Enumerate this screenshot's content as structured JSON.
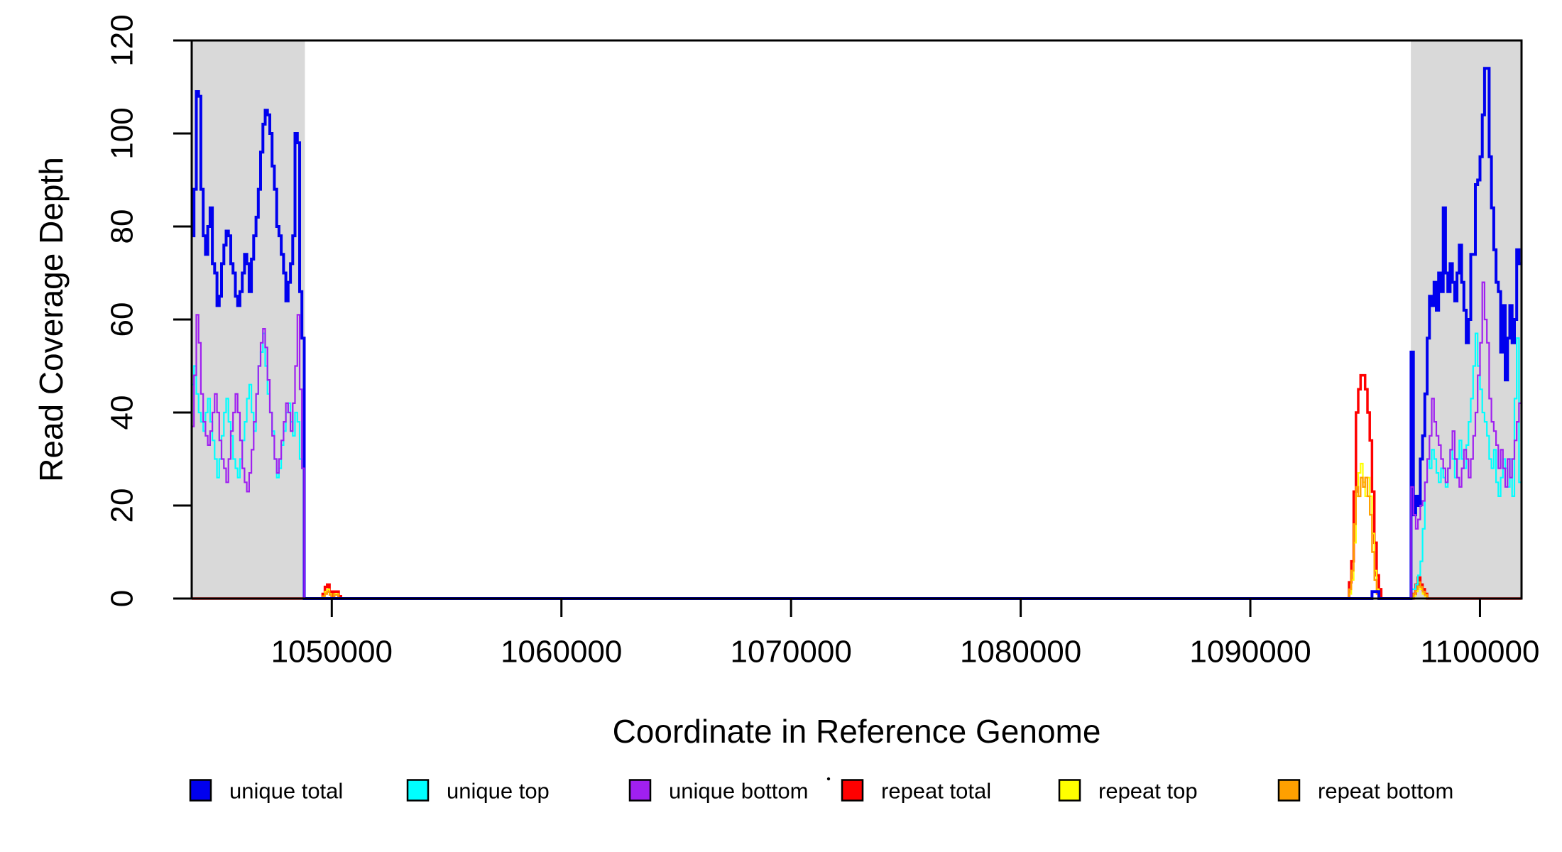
{
  "figure": {
    "background": "#FFFFFF"
  },
  "chart_data": {
    "type": "line",
    "subtype": "step-coverage-plot",
    "title": "",
    "xlabel": "Coordinate in Reference Genome",
    "ylabel": "Read Coverage Depth",
    "xlim": [
      1043900,
      1101810
    ],
    "ylim": [
      0,
      120
    ],
    "bin_size": 100,
    "grid": false,
    "axis_color": "#000000",
    "shade_color": "#D9D9D9",
    "shaded_regions": [
      {
        "name": "left-unique-block",
        "x0": 1043900,
        "x1": 1048830
      },
      {
        "name": "right-unique-block",
        "x0": 1096990,
        "x1": 1101810
      }
    ],
    "xticks": [
      {
        "value": 1050000,
        "label": "1050000"
      },
      {
        "value": 1060000,
        "label": "1060000"
      },
      {
        "value": 1070000,
        "label": "1070000"
      },
      {
        "value": 1080000,
        "label": "1080000"
      },
      {
        "value": 1090000,
        "label": "1090000"
      },
      {
        "value": 1100000,
        "label": "1100000"
      }
    ],
    "yticks": [
      {
        "value": 0,
        "label": "0"
      },
      {
        "value": 20,
        "label": "20"
      },
      {
        "value": 40,
        "label": "40"
      },
      {
        "value": 60,
        "label": "60"
      },
      {
        "value": 80,
        "label": "80"
      },
      {
        "value": 100,
        "label": "100"
      },
      {
        "value": 120,
        "label": "120"
      }
    ],
    "legend_position": "bottom",
    "draw_order": [
      "repeat total",
      "repeat top",
      "repeat bottom",
      "unique top",
      "unique total",
      "unique bottom"
    ],
    "series": [
      {
        "label": "unique total",
        "color": "#0000EE",
        "line_width": 4,
        "segments": [
          {
            "start": 1043900,
            "values": [
              78,
              88,
              109,
              108,
              88,
              78,
              74,
              80,
              84,
              72,
              70,
              63,
              65,
              72,
              76,
              79,
              78,
              72,
              70,
              65,
              63,
              66,
              70,
              74,
              72,
              66,
              73,
              78,
              82,
              88,
              96,
              102,
              105,
              104,
              100,
              93,
              88,
              80,
              78,
              74,
              70,
              64,
              68,
              72,
              78,
              100,
              98,
              66,
              56
            ]
          },
          {
            "start": 1095300,
            "values": [
              1.5,
              1.5,
              1.5
            ]
          },
          {
            "start": 1097000,
            "values": [
              53,
              18,
              22,
              20,
              30,
              35,
              44,
              56,
              65,
              63,
              68,
              62,
              70,
              66,
              84,
              70,
              66,
              72,
              68,
              64,
              70,
              76,
              68,
              62,
              55,
              60,
              74,
              74,
              89,
              90,
              95,
              104,
              114,
              114,
              95,
              84,
              75,
              68,
              66,
              53,
              63,
              47,
              56,
              63,
              55,
              60,
              75,
              72
            ]
          }
        ]
      },
      {
        "label": "unique top",
        "color": "#00FFFF",
        "line_width": 2.2,
        "segments": [
          {
            "start": 1043900,
            "values": [
              46,
              50,
              44,
              40,
              38,
              36,
              40,
              43,
              38,
              34,
              30,
              26,
              30,
              35,
              40,
              43,
              38,
              35,
              30,
              28,
              26,
              30,
              34,
              38,
              43,
              46,
              40,
              36,
              44,
              50,
              53,
              57,
              50,
              44,
              40,
              36,
              30,
              26,
              28,
              33,
              36,
              40,
              42,
              38,
              35,
              40,
              38,
              30,
              28
            ]
          },
          {
            "start": 1097000,
            "values": [
              2,
              2,
              3,
              5,
              8,
              15,
              25,
              30,
              28,
              32,
              30,
              27,
              25,
              28,
              26,
              24,
              28,
              32,
              30,
              26,
              30,
              34,
              30,
              28,
              33,
              38,
              43,
              50,
              57,
              50,
              45,
              40,
              38,
              35,
              30,
              28,
              32,
              25,
              22,
              26,
              30,
              28,
              24,
              30,
              22,
              43,
              56,
              25
            ]
          }
        ]
      },
      {
        "label": "unique bottom",
        "color": "#A020F0",
        "line_width": 2.2,
        "segments": [
          {
            "start": 1043900,
            "values": [
              37,
              48,
              61,
              55,
              44,
              38,
              35,
              33,
              36,
              40,
              44,
              40,
              34,
              30,
              28,
              25,
              30,
              36,
              40,
              44,
              40,
              34,
              28,
              25,
              23,
              27,
              32,
              38,
              44,
              50,
              55,
              58,
              54,
              47,
              40,
              35,
              30,
              27,
              30,
              34,
              38,
              42,
              40,
              36,
              42,
              50,
              61,
              45,
              28
            ]
          },
          {
            "start": 1097000,
            "values": [
              24,
              18,
              15,
              17,
              20,
              21,
              25,
              30,
              35,
              43,
              38,
              35,
              33,
              30,
              28,
              25,
              28,
              32,
              36,
              30,
              26,
              24,
              28,
              32,
              30,
              26,
              30,
              35,
              40,
              48,
              55,
              68,
              60,
              55,
              43,
              38,
              36,
              33,
              28,
              32,
              28,
              24,
              30,
              26,
              30,
              34,
              38,
              42
            ]
          }
        ]
      },
      {
        "label": "repeat total",
        "color": "#FF0000",
        "line_width": 3.5,
        "segments": [
          {
            "start": 1049600,
            "values": [
              1,
              2.5,
              3,
              1.5,
              0,
              1.5,
              1.5,
              0.5
            ]
          },
          {
            "start": 1094300,
            "values": [
              3.5,
              8,
              23,
              40,
              45,
              48,
              48,
              45,
              40,
              34,
              23,
              12,
              5,
              2,
              0
            ]
          },
          {
            "start": 1097100,
            "values": [
              1,
              3,
              4.5,
              3,
              2,
              1
            ]
          }
        ]
      },
      {
        "label": "repeat top",
        "color": "#FFFF00",
        "line_width": 2.2,
        "segments": [
          {
            "start": 1049600,
            "values": [
              0.5,
              1.5,
              2,
              1,
              0,
              1,
              1,
              0
            ]
          },
          {
            "start": 1094300,
            "values": [
              1,
              4,
              12,
              22,
              27,
              29,
              25,
              22,
              26,
              22,
              14,
              6,
              2,
              0,
              0
            ]
          },
          {
            "start": 1097100,
            "values": [
              0.5,
              1.5,
              2.5,
              2,
              1,
              0.5
            ]
          }
        ]
      },
      {
        "label": "repeat bottom",
        "color": "#FFA000",
        "line_width": 2.4,
        "segments": [
          {
            "start": 1049600,
            "values": [
              0.5,
              1,
              1.5,
              0.8,
              0,
              0.8,
              0.8,
              0
            ]
          },
          {
            "start": 1094300,
            "values": [
              2,
              6,
              16,
              24,
              22,
              26,
              24,
              26,
              22,
              18,
              10,
              4,
              1,
              0,
              0
            ]
          },
          {
            "start": 1097100,
            "values": [
              1,
              2,
              3.5,
              2.5,
              1.5,
              0.8
            ]
          }
        ]
      }
    ],
    "stray_dot": {
      "x": 1167,
      "y": 1097
    }
  }
}
